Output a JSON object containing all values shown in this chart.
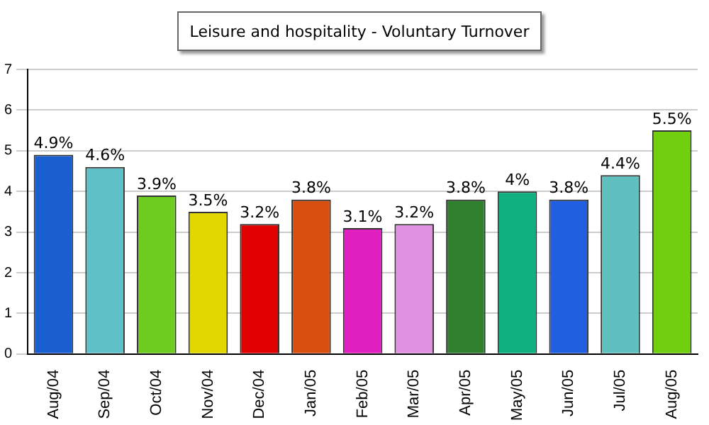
{
  "chart_data": {
    "type": "bar",
    "title": "Leisure and hospitality - Voluntary Turnover",
    "categories": [
      "Aug/04",
      "Sep/04",
      "Oct/04",
      "Nov/04",
      "Dec/04",
      "Jan/05",
      "Feb/05",
      "Mar/05",
      "Apr/05",
      "May/05",
      "Jun/05",
      "Jul/05",
      "Aug/05"
    ],
    "values": [
      4.9,
      4.6,
      3.9,
      3.5,
      3.2,
      3.8,
      3.1,
      3.2,
      3.8,
      4,
      3.8,
      4.4,
      5.5
    ],
    "value_labels": [
      "4.9%",
      "4.6%",
      "3.9%",
      "3.5%",
      "3.2%",
      "3.8%",
      "3.1%",
      "3.2%",
      "3.8%",
      "4%",
      "3.8%",
      "4.4%",
      "5.5%"
    ],
    "colors": [
      "#1a5fd0",
      "#5fc0c8",
      "#6ecc20",
      "#e0d800",
      "#e00000",
      "#d85010",
      "#e020c0",
      "#e090e0",
      "#308030",
      "#10b080",
      "#2060e0",
      "#60c0c0",
      "#70d010"
    ],
    "ylim": [
      0,
      7
    ],
    "yticks": [
      0,
      1,
      2,
      3,
      4,
      5,
      6,
      7
    ],
    "grid": "y"
  }
}
